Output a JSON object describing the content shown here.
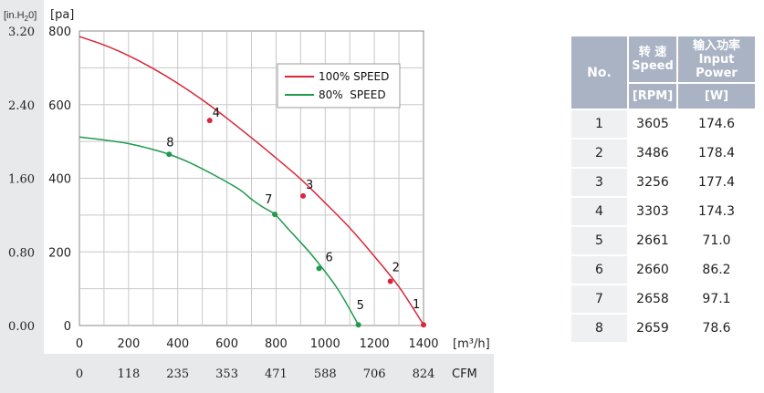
{
  "chart_data": {
    "type": "line",
    "primary_x_axis": {
      "unit": "[m³/h]",
      "ticks": [
        0,
        200,
        400,
        600,
        800,
        1000,
        1200,
        1400
      ],
      "range": [
        0,
        1400
      ]
    },
    "secondary_x_axis": {
      "unit": "CFM",
      "ticks": [
        "0",
        "118",
        "235",
        "353",
        "471",
        "588",
        "706",
        "824"
      ]
    },
    "primary_y_axis": {
      "unit": "[pa]",
      "ticks": [
        0,
        200,
        400,
        600,
        800
      ],
      "range": [
        0,
        800
      ]
    },
    "secondary_y_axis": {
      "unit_prefix": "[in.H",
      "unit_sub": "2",
      "unit_suffix": "0]",
      "ticks": [
        "0.00",
        "0.80",
        "1.60",
        "2.40",
        "3.20"
      ]
    },
    "grid": true,
    "legend_position": "top-right",
    "series": [
      {
        "name": "100% SPEED",
        "color": "#d9263a",
        "curve": [
          [
            0,
            785
          ],
          [
            100,
            762
          ],
          [
            200,
            733
          ],
          [
            300,
            698
          ],
          [
            400,
            658
          ],
          [
            500,
            613
          ],
          [
            600,
            563
          ],
          [
            700,
            510
          ],
          [
            800,
            455
          ],
          [
            900,
            398
          ],
          [
            1000,
            333
          ],
          [
            1100,
            265
          ],
          [
            1200,
            188
          ],
          [
            1300,
            105
          ],
          [
            1400,
            2
          ]
        ],
        "points": [
          {
            "label": "1",
            "x": 1400,
            "y": 2
          },
          {
            "label": "2",
            "x": 1265,
            "y": 120
          },
          {
            "label": "3",
            "x": 910,
            "y": 352
          },
          {
            "label": "4",
            "x": 530,
            "y": 557
          }
        ]
      },
      {
        "name": "80%  SPEED",
        "color": "#1f9a4c",
        "curve": [
          [
            0,
            512
          ],
          [
            100,
            504
          ],
          [
            200,
            494
          ],
          [
            300,
            478
          ],
          [
            365,
            465
          ],
          [
            450,
            442
          ],
          [
            550,
            408
          ],
          [
            650,
            370
          ],
          [
            700,
            343
          ],
          [
            750,
            320
          ],
          [
            795,
            302
          ],
          [
            850,
            262
          ],
          [
            950,
            188
          ],
          [
            1050,
            100
          ],
          [
            1135,
            2
          ]
        ],
        "points": [
          {
            "label": "5",
            "x": 1135,
            "y": 2
          },
          {
            "label": "6",
            "x": 975,
            "y": 155
          },
          {
            "label": "7",
            "x": 795,
            "y": 302
          },
          {
            "label": "8",
            "x": 365,
            "y": 465
          }
        ]
      }
    ]
  },
  "table": {
    "headers": {
      "no": "No.",
      "speed_cn": "转 速",
      "speed_en": "Speed",
      "power_cn": "输入功率",
      "power_en": "Input Power",
      "speed_unit": "[RPM]",
      "power_unit": "[W]"
    },
    "rows": [
      {
        "no": "1",
        "rpm": "3605",
        "w": "174.6"
      },
      {
        "no": "2",
        "rpm": "3486",
        "w": "178.4"
      },
      {
        "no": "3",
        "rpm": "3256",
        "w": "177.4"
      },
      {
        "no": "4",
        "rpm": "3303",
        "w": "174.3"
      },
      {
        "no": "5",
        "rpm": "2661",
        "w": "71.0"
      },
      {
        "no": "6",
        "rpm": "2660",
        "w": "86.2"
      },
      {
        "no": "7",
        "rpm": "2658",
        "w": "97.1"
      },
      {
        "no": "8",
        "rpm": "2659",
        "w": "78.6"
      }
    ]
  }
}
